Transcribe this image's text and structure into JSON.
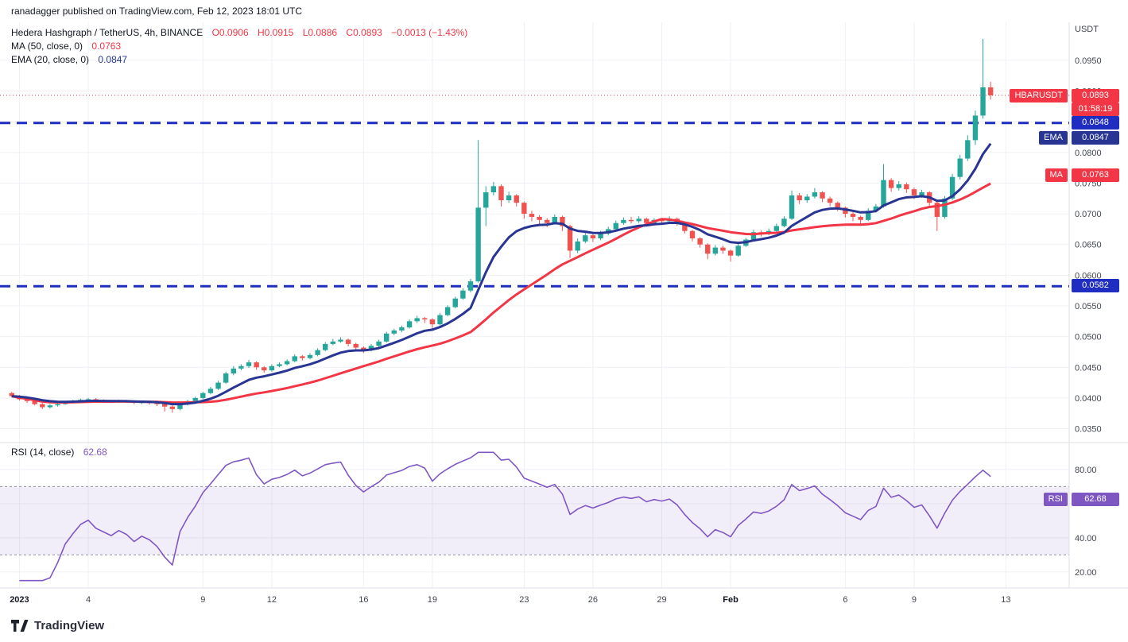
{
  "header": {
    "text": "ranadagger published on TradingView.com, Feb 12, 2023 18:01 UTC"
  },
  "legend": {
    "title": "Hedera Hashgraph / TetherUS, 4h, BINANCE",
    "ohlc": [
      "O0.0906",
      "H0.0915",
      "L0.0886",
      "C0.0893",
      "−0.0013 (−1.43%)"
    ],
    "ma_label": "MA (50, close, 0)",
    "ma_value": "0.0763",
    "ema_label": "EMA (20, close, 0)",
    "ema_value": "0.0847",
    "rsi_label": "RSI (14, close)",
    "rsi_value": "62.68"
  },
  "axis_badges": {
    "symbol_tag": "HBARUSDT",
    "last_price": "0.0893",
    "countdown": "01:58:19",
    "upper_level": "0.0848",
    "ema_tag": "EMA",
    "ema_value": "0.0847",
    "ma_tag": "MA",
    "ma_value": "0.0763",
    "lower_level": "0.0582",
    "rsi_tag": "RSI",
    "rsi_value": "62.68"
  },
  "price_axis": {
    "unit": "USDT",
    "labels": [
      "0.0950",
      "0.0900",
      "0.0850",
      "0.0800",
      "0.0750",
      "0.0700",
      "0.0650",
      "0.0600",
      "0.0550",
      "0.0500",
      "0.0450",
      "0.0400",
      "0.0350"
    ]
  },
  "rsi_axis": {
    "labels": [
      "80.00",
      "40.00",
      "20.00"
    ],
    "grid": [
      80,
      60,
      40,
      20
    ]
  },
  "time_axis": {
    "ticks": [
      {
        "label": "2023",
        "day": 0,
        "major": true
      },
      {
        "label": "4",
        "day": 3
      },
      {
        "label": "9",
        "day": 8
      },
      {
        "label": "12",
        "day": 11
      },
      {
        "label": "16",
        "day": 15
      },
      {
        "label": "19",
        "day": 18
      },
      {
        "label": "23",
        "day": 22
      },
      {
        "label": "26",
        "day": 25
      },
      {
        "label": "29",
        "day": 28
      },
      {
        "label": "Feb",
        "day": 31,
        "major": true
      },
      {
        "label": "6",
        "day": 36
      },
      {
        "label": "9",
        "day": 39
      },
      {
        "label": "13",
        "day": 43
      }
    ]
  },
  "footer": {
    "brand": "TradingView"
  },
  "colors": {
    "up": "#26a69a",
    "down": "#ef5350",
    "ma": "#f23645",
    "ema": "#283593",
    "level": "#1f2dc0",
    "last": "#f23645",
    "rsi": "#7e57c2",
    "rsi_band": "rgba(126,87,194,0.10)",
    "band_line": "#8f92a0",
    "grid": "#eef0f5",
    "border": "#dcdfe6"
  },
  "chart_data": {
    "type": "candlestick",
    "title": "Hedera Hashgraph / TetherUS, 4h, BINANCE",
    "symbol": "HBARUSDT",
    "exchange": "BINANCE",
    "timeframe": "4h",
    "x_start": "2023-01-01",
    "x_end": "2023-02-13",
    "ylim": [
      0.033,
      0.099
    ],
    "last": {
      "open": 0.0906,
      "high": 0.0915,
      "low": 0.0886,
      "close": 0.0893,
      "change": -0.0013,
      "change_pct": -1.43
    },
    "current_price": 0.0893,
    "levels": [
      0.0848,
      0.0582
    ],
    "indicators": {
      "ma": {
        "type": "SMA",
        "period": 50,
        "source": "close",
        "value": 0.0763
      },
      "ema": {
        "type": "EMA",
        "period": 20,
        "source": "close",
        "value": 0.0847
      },
      "rsi": {
        "period": 14,
        "source": "close",
        "value": 62.68,
        "band": [
          30,
          70
        ],
        "range_labels": [
          80,
          40,
          20
        ]
      }
    },
    "scale": 0.0001,
    "candles": [
      [
        408,
        410,
        401,
        403
      ],
      [
        403,
        405,
        396,
        398
      ],
      [
        398,
        400,
        392,
        395
      ],
      [
        395,
        396,
        388,
        390
      ],
      [
        390,
        392,
        382,
        385
      ],
      [
        385,
        390,
        383,
        388
      ],
      [
        388,
        392,
        386,
        390
      ],
      [
        390,
        395,
        389,
        393
      ],
      [
        393,
        397,
        391,
        395
      ],
      [
        395,
        399,
        393,
        397
      ],
      [
        397,
        400,
        395,
        398
      ],
      [
        398,
        400,
        394,
        396
      ],
      [
        396,
        398,
        393,
        395
      ],
      [
        395,
        397,
        392,
        394
      ],
      [
        394,
        397,
        392,
        395
      ],
      [
        395,
        397,
        392,
        394
      ],
      [
        394,
        396,
        390,
        392
      ],
      [
        392,
        395,
        390,
        393
      ],
      [
        393,
        395,
        389,
        392
      ],
      [
        392,
        394,
        387,
        390
      ],
      [
        390,
        392,
        378,
        386
      ],
      [
        386,
        388,
        376,
        382
      ],
      [
        382,
        392,
        380,
        390
      ],
      [
        390,
        397,
        388,
        395
      ],
      [
        395,
        402,
        393,
        400
      ],
      [
        400,
        410,
        398,
        408
      ],
      [
        408,
        418,
        406,
        415
      ],
      [
        415,
        428,
        413,
        425
      ],
      [
        425,
        443,
        423,
        440
      ],
      [
        440,
        452,
        437,
        448
      ],
      [
        448,
        455,
        445,
        452
      ],
      [
        452,
        462,
        449,
        458
      ],
      [
        458,
        460,
        446,
        450
      ],
      [
        450,
        452,
        441,
        445
      ],
      [
        445,
        455,
        443,
        452
      ],
      [
        452,
        458,
        450,
        455
      ],
      [
        455,
        463,
        453,
        460
      ],
      [
        460,
        471,
        458,
        468
      ],
      [
        468,
        470,
        461,
        465
      ],
      [
        465,
        473,
        463,
        470
      ],
      [
        470,
        481,
        468,
        478
      ],
      [
        478,
        491,
        476,
        488
      ],
      [
        488,
        496,
        486,
        492
      ],
      [
        492,
        499,
        490,
        495
      ],
      [
        495,
        497,
        484,
        488
      ],
      [
        488,
        490,
        478,
        482
      ],
      [
        482,
        484,
        473,
        478
      ],
      [
        478,
        488,
        476,
        485
      ],
      [
        485,
        495,
        483,
        492
      ],
      [
        492,
        508,
        490,
        505
      ],
      [
        505,
        513,
        502,
        510
      ],
      [
        510,
        518,
        507,
        515
      ],
      [
        515,
        528,
        513,
        525
      ],
      [
        525,
        534,
        522,
        530
      ],
      [
        530,
        532,
        522,
        528
      ],
      [
        528,
        530,
        512,
        520
      ],
      [
        520,
        538,
        518,
        535
      ],
      [
        535,
        551,
        533,
        548
      ],
      [
        548,
        565,
        546,
        562
      ],
      [
        562,
        579,
        560,
        575
      ],
      [
        575,
        594,
        572,
        590
      ],
      [
        590,
        820,
        588,
        710
      ],
      [
        710,
        745,
        680,
        735
      ],
      [
        735,
        752,
        730,
        745
      ],
      [
        745,
        748,
        712,
        722
      ],
      [
        722,
        736,
        718,
        730
      ],
      [
        730,
        732,
        712,
        718
      ],
      [
        718,
        720,
        692,
        700
      ],
      [
        700,
        705,
        688,
        695
      ],
      [
        695,
        698,
        682,
        690
      ],
      [
        690,
        693,
        678,
        685
      ],
      [
        685,
        699,
        683,
        695
      ],
      [
        695,
        697,
        672,
        680
      ],
      [
        680,
        682,
        628,
        640
      ],
      [
        640,
        660,
        636,
        655
      ],
      [
        655,
        669,
        652,
        665
      ],
      [
        665,
        668,
        654,
        660
      ],
      [
        660,
        672,
        657,
        668
      ],
      [
        668,
        679,
        665,
        675
      ],
      [
        675,
        689,
        672,
        685
      ],
      [
        685,
        694,
        682,
        690
      ],
      [
        690,
        695,
        684,
        688
      ],
      [
        688,
        696,
        685,
        692
      ],
      [
        692,
        694,
        681,
        685
      ],
      [
        685,
        693,
        683,
        690
      ],
      [
        690,
        692,
        684,
        688
      ],
      [
        688,
        696,
        685,
        692
      ],
      [
        692,
        694,
        681,
        685
      ],
      [
        685,
        687,
        668,
        672
      ],
      [
        672,
        674,
        655,
        660
      ],
      [
        660,
        662,
        645,
        650
      ],
      [
        650,
        652,
        626,
        635
      ],
      [
        635,
        649,
        632,
        645
      ],
      [
        645,
        648,
        635,
        640
      ],
      [
        640,
        642,
        622,
        632
      ],
      [
        632,
        652,
        630,
        648
      ],
      [
        648,
        661,
        646,
        658
      ],
      [
        658,
        674,
        656,
        670
      ],
      [
        670,
        673,
        663,
        668
      ],
      [
        668,
        676,
        665,
        672
      ],
      [
        672,
        684,
        670,
        680
      ],
      [
        680,
        696,
        678,
        692
      ],
      [
        692,
        738,
        690,
        730
      ],
      [
        730,
        734,
        716,
        722
      ],
      [
        722,
        732,
        718,
        728
      ],
      [
        728,
        742,
        725,
        735
      ],
      [
        735,
        737,
        719,
        725
      ],
      [
        725,
        728,
        712,
        718
      ],
      [
        718,
        720,
        704,
        710
      ],
      [
        710,
        712,
        694,
        700
      ],
      [
        700,
        703,
        688,
        695
      ],
      [
        695,
        697,
        682,
        690
      ],
      [
        690,
        709,
        688,
        705
      ],
      [
        705,
        716,
        702,
        712
      ],
      [
        712,
        781,
        710,
        755
      ],
      [
        755,
        758,
        736,
        742
      ],
      [
        742,
        753,
        738,
        748
      ],
      [
        748,
        751,
        734,
        740
      ],
      [
        740,
        743,
        724,
        730
      ],
      [
        730,
        739,
        726,
        735
      ],
      [
        735,
        737,
        712,
        718
      ],
      [
        718,
        720,
        672,
        695
      ],
      [
        695,
        729,
        692,
        725
      ],
      [
        725,
        765,
        722,
        760
      ],
      [
        760,
        796,
        756,
        790
      ],
      [
        790,
        828,
        786,
        820
      ],
      [
        820,
        868,
        812,
        860
      ],
      [
        860,
        985,
        855,
        906
      ],
      [
        906,
        915,
        886,
        893
      ]
    ]
  }
}
